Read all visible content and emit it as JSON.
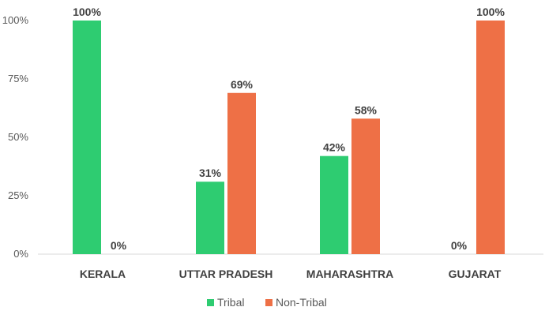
{
  "chart_data": {
    "type": "bar",
    "title": "",
    "xlabel": "",
    "ylabel": "",
    "ylim": [
      0,
      1
    ],
    "yticks": [
      {
        "value": 0,
        "label": "0%"
      },
      {
        "value": 0.25,
        "label": "25%"
      },
      {
        "value": 0.5,
        "label": "50%"
      },
      {
        "value": 0.75,
        "label": "75%"
      },
      {
        "value": 1,
        "label": "100%"
      }
    ],
    "categories": [
      "KERALA",
      "UTTAR PRADESH",
      "MAHARASHTRA",
      "GUJARAT"
    ],
    "series": [
      {
        "name": "Tribal",
        "color": "#2ecc71",
        "values": [
          1.0,
          0.31,
          0.42,
          0.0
        ],
        "labels": [
          "100%",
          "31%",
          "42%",
          "0%"
        ]
      },
      {
        "name": "Non-Tribal",
        "color": "#ee7046",
        "values": [
          0.0,
          0.69,
          0.58,
          1.0
        ],
        "labels": [
          "0%",
          "69%",
          "58%",
          "100%"
        ]
      }
    ],
    "grid": false,
    "legend": "bottom-center"
  }
}
